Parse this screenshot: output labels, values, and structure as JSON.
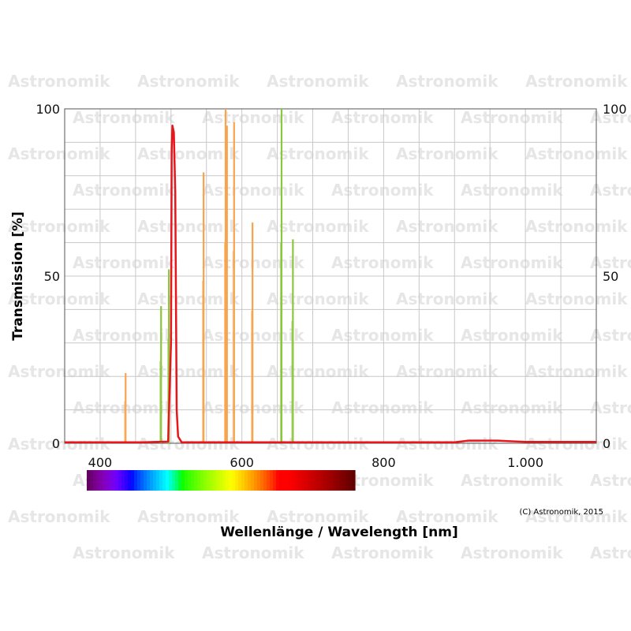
{
  "chart_data": {
    "type": "line",
    "xlabel": "Wellenlänge / Wavelength [nm]",
    "ylabel": "Transmission [%]",
    "xlim": [
      350,
      1100
    ],
    "ylim": [
      0,
      100
    ],
    "x_ticks": [
      400,
      600,
      800,
      1000
    ],
    "x_tick_labels": [
      "400",
      "600",
      "800",
      "1.000"
    ],
    "y_ticks": [
      0,
      50,
      100
    ],
    "y_tick_labels": [
      "0",
      "50",
      "100"
    ],
    "grid": true,
    "watermark": "Astronomik",
    "copyright": "(C) Astronomik, 2015",
    "series": [
      {
        "color": "#e8151b",
        "values": [
          [
            350,
            0.3
          ],
          [
            460,
            0.3
          ],
          [
            496,
            0.5
          ],
          [
            500,
            30
          ],
          [
            501,
            88
          ],
          [
            502,
            95
          ],
          [
            504,
            93
          ],
          [
            506,
            75
          ],
          [
            508,
            10
          ],
          [
            510,
            2
          ],
          [
            515,
            0.3
          ],
          [
            900,
            0.3
          ],
          [
            920,
            0.8
          ],
          [
            960,
            0.8
          ],
          [
            1000,
            0.4
          ],
          [
            1100,
            0.4
          ]
        ]
      },
      {
        "color": "#f7a44c",
        "lines": [
          [
            436,
            21
          ],
          [
            546,
            81
          ],
          [
            577,
            100
          ],
          [
            579,
            95
          ],
          [
            589,
            96
          ],
          [
            615,
            66
          ]
        ]
      },
      {
        "color": "#8cc63e",
        "lines": [
          [
            486,
            41
          ],
          [
            497,
            52
          ],
          [
            656,
            100
          ],
          [
            672,
            61
          ]
        ]
      }
    ],
    "colorbar": {
      "from_nm": 380,
      "to_nm": 750
    }
  }
}
